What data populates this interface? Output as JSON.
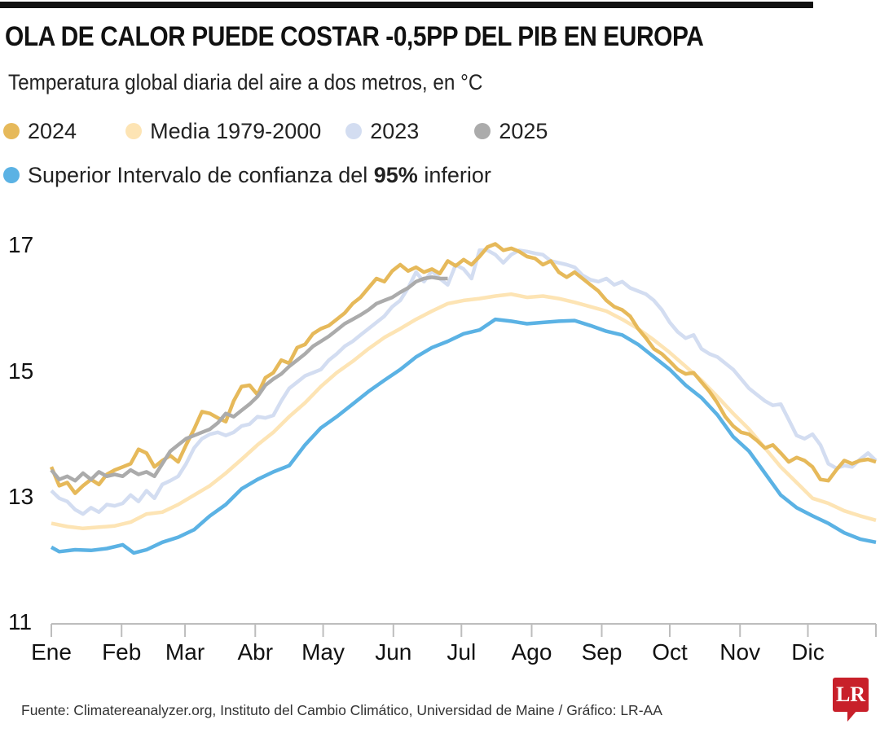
{
  "header": {
    "title": "OLA DE CALOR PUEDE COSTAR -0,5PP DEL PIB EN EUROPA",
    "subtitle": "Temperatura global diaria del aire a dos metros, en °C"
  },
  "legend": [
    {
      "label": "2024",
      "color": "#e6b95a"
    },
    {
      "label": "Media 1979-2000",
      "color": "#fde4b4"
    },
    {
      "label": "2023",
      "color": "#d3ddf1"
    },
    {
      "label": "2025",
      "color": "#ababab"
    }
  ],
  "legend_row2": {
    "prefix": "Superior Intervalo de confianza del ",
    "bold": "95%",
    "suffix": " inferior",
    "color": "#5bb2e4"
  },
  "footer": {
    "source": "Fuente: Climatereanalyzer.org, Instituto del Cambio Climático, Universidad de Maine / Gráfico: LR-AA",
    "logo_text": "LR"
  },
  "chart_data": {
    "type": "line",
    "title": "OLA DE CALOR PUEDE COSTAR -0,5PP DEL PIB EN EUROPA",
    "subtitle": "Temperatura global diaria del aire a dos metros, en °C",
    "xlabel": "",
    "ylabel": "°C",
    "ylim": [
      11,
      17.6
    ],
    "yticks": [
      11,
      13,
      15,
      17
    ],
    "xlim": [
      0,
      52
    ],
    "x_unit": "week of year",
    "xticks": [
      {
        "label": "Ene",
        "week": 0
      },
      {
        "label": "Feb",
        "week": 4.43
      },
      {
        "label": "Mar",
        "week": 8.43
      },
      {
        "label": "Abr",
        "week": 12.86
      },
      {
        "label": "May",
        "week": 17.14
      },
      {
        "label": "Jun",
        "week": 21.57
      },
      {
        "label": "Jul",
        "week": 25.86
      },
      {
        "label": "Ago",
        "week": 30.29
      },
      {
        "label": "Sep",
        "week": 34.71
      },
      {
        "label": "Oct",
        "week": 39.0
      },
      {
        "label": "Nov",
        "week": 43.43
      },
      {
        "label": "Dic",
        "week": 47.71
      }
    ],
    "grid": false,
    "legend_position": "top",
    "series": [
      {
        "name": "Superior Intervalo de confianza del 95% inferior",
        "color": "#5bb2e4",
        "x": [
          0,
          0.5,
          1.5,
          2.5,
          3.5,
          4.5,
          5.2,
          6,
          7,
          8,
          9,
          10,
          11,
          12,
          13,
          14,
          15,
          16,
          17,
          18,
          19,
          20,
          21,
          22,
          23,
          24,
          25,
          26,
          27,
          28,
          29,
          30,
          31,
          32,
          33,
          34,
          35,
          36,
          37,
          38,
          39,
          40,
          41,
          42,
          43,
          44,
          45,
          46,
          47,
          48,
          49,
          50,
          51,
          52
        ],
        "values": [
          12.22,
          12.15,
          12.18,
          12.17,
          12.2,
          12.26,
          12.13,
          12.18,
          12.3,
          12.38,
          12.5,
          12.72,
          12.9,
          13.15,
          13.3,
          13.42,
          13.52,
          13.85,
          14.12,
          14.3,
          14.5,
          14.7,
          14.88,
          15.05,
          15.25,
          15.4,
          15.5,
          15.62,
          15.68,
          15.85,
          15.82,
          15.78,
          15.8,
          15.82,
          15.83,
          15.75,
          15.66,
          15.6,
          15.45,
          15.25,
          15.05,
          14.8,
          14.6,
          14.33,
          13.98,
          13.75,
          13.4,
          13.05,
          12.85,
          12.72,
          12.6,
          12.45,
          12.35,
          12.3
        ]
      },
      {
        "name": "Media 1979-2000",
        "color": "#fde4b4",
        "x": [
          0,
          1,
          2,
          3,
          4,
          5,
          6,
          7,
          8,
          9,
          10,
          11,
          12,
          13,
          14,
          15,
          16,
          17,
          18,
          19,
          20,
          21,
          22,
          23,
          24,
          25,
          26,
          27,
          28,
          29,
          30,
          31,
          32,
          33,
          34,
          35,
          36,
          37,
          38,
          39,
          40,
          41,
          42,
          43,
          44,
          45,
          46,
          47,
          48,
          49,
          50,
          51,
          52
        ],
        "values": [
          12.6,
          12.55,
          12.52,
          12.54,
          12.56,
          12.62,
          12.75,
          12.78,
          12.9,
          13.05,
          13.2,
          13.4,
          13.62,
          13.85,
          14.05,
          14.3,
          14.52,
          14.78,
          15.0,
          15.18,
          15.38,
          15.56,
          15.7,
          15.85,
          15.98,
          16.1,
          16.15,
          16.18,
          16.22,
          16.25,
          16.2,
          16.22,
          16.18,
          16.12,
          16.05,
          15.98,
          15.85,
          15.7,
          15.52,
          15.32,
          15.1,
          14.88,
          14.62,
          14.35,
          14.1,
          13.8,
          13.5,
          13.25,
          13.0,
          12.92,
          12.8,
          12.72,
          12.65
        ]
      },
      {
        "name": "2023",
        "color": "#d3ddf1",
        "x": [
          0,
          0.5,
          1,
          1.5,
          2,
          2.5,
          3,
          3.5,
          4,
          4.5,
          5,
          5.5,
          6,
          6.5,
          7,
          7.5,
          8,
          8.5,
          9,
          9.5,
          10,
          10.5,
          11,
          11.5,
          12,
          12.5,
          13,
          13.5,
          14,
          14.5,
          15,
          15.5,
          16,
          16.5,
          17,
          17.5,
          18,
          18.5,
          19,
          19.5,
          20,
          20.5,
          21,
          21.5,
          22,
          22.5,
          23,
          23.5,
          24,
          24.5,
          25,
          25.5,
          26,
          26.5,
          27,
          27.5,
          28,
          28.5,
          29,
          29.5,
          30,
          30.5,
          31,
          31.5,
          32,
          32.5,
          33,
          33.5,
          34,
          34.5,
          35,
          35.5,
          36,
          36.5,
          37,
          37.5,
          38,
          38.5,
          39,
          39.5,
          40,
          40.5,
          41,
          41.5,
          42,
          42.5,
          43,
          43.5,
          44,
          44.5,
          45,
          45.5,
          46,
          46.5,
          47,
          47.5,
          48,
          48.5,
          49,
          49.5,
          50,
          50.5,
          51,
          51.5,
          52
        ],
        "values": [
          13.12,
          13.0,
          12.95,
          12.82,
          12.75,
          12.85,
          12.78,
          12.9,
          12.88,
          12.92,
          13.05,
          12.95,
          13.12,
          13.0,
          13.22,
          13.28,
          13.35,
          13.55,
          13.8,
          13.95,
          14.02,
          14.05,
          14.0,
          14.05,
          14.15,
          14.18,
          14.3,
          14.28,
          14.32,
          14.55,
          14.75,
          14.85,
          14.95,
          15.0,
          15.05,
          15.2,
          15.3,
          15.42,
          15.5,
          15.6,
          15.7,
          15.8,
          15.9,
          16.05,
          16.15,
          16.35,
          16.6,
          16.45,
          16.62,
          16.5,
          16.4,
          16.72,
          16.65,
          16.5,
          16.95,
          16.95,
          16.88,
          16.75,
          16.88,
          16.95,
          16.93,
          16.9,
          16.88,
          16.78,
          16.75,
          16.72,
          16.68,
          16.55,
          16.48,
          16.45,
          16.5,
          16.4,
          16.45,
          16.35,
          16.3,
          16.25,
          16.15,
          16.0,
          15.8,
          15.65,
          15.55,
          15.6,
          15.38,
          15.3,
          15.25,
          15.15,
          15.05,
          14.9,
          14.75,
          14.65,
          14.55,
          14.48,
          14.5,
          14.25,
          14.0,
          13.95,
          14.02,
          13.85,
          13.55,
          13.48,
          13.52,
          13.5,
          13.62,
          13.72,
          13.6
        ]
      },
      {
        "name": "2024",
        "color": "#e6b95a",
        "x": [
          0,
          0.5,
          1,
          1.5,
          2,
          2.5,
          3,
          3.5,
          4,
          4.5,
          5,
          5.5,
          6,
          6.5,
          7,
          7.5,
          8,
          8.5,
          9,
          9.5,
          10,
          10.5,
          11,
          11.5,
          12,
          12.5,
          13,
          13.5,
          14,
          14.5,
          15,
          15.5,
          16,
          16.5,
          17,
          17.5,
          18,
          18.5,
          19,
          19.5,
          20,
          20.5,
          21,
          21.5,
          22,
          22.5,
          23,
          23.5,
          24,
          24.5,
          25,
          25.5,
          26,
          26.5,
          27,
          27.5,
          28,
          28.5,
          29,
          29.5,
          30,
          30.5,
          31,
          31.5,
          32,
          32.5,
          33,
          33.5,
          34,
          34.5,
          35,
          35.5,
          36,
          36.5,
          37,
          37.5,
          38,
          38.5,
          39,
          39.5,
          40,
          40.5,
          41,
          41.5,
          42,
          42.5,
          43,
          43.5,
          44,
          44.5,
          45,
          45.5,
          46,
          46.5,
          47,
          47.5,
          48,
          48.5,
          49,
          49.5,
          50,
          50.5,
          51,
          51.5,
          52
        ],
        "values": [
          13.5,
          13.2,
          13.25,
          13.08,
          13.2,
          13.3,
          13.22,
          13.38,
          13.45,
          13.5,
          13.55,
          13.78,
          13.72,
          13.5,
          13.6,
          13.68,
          13.58,
          13.85,
          14.1,
          14.38,
          14.35,
          14.28,
          14.22,
          14.55,
          14.78,
          14.8,
          14.65,
          14.92,
          15.0,
          15.2,
          15.15,
          15.4,
          15.45,
          15.62,
          15.7,
          15.75,
          15.85,
          15.95,
          16.1,
          16.2,
          16.35,
          16.5,
          16.45,
          16.62,
          16.72,
          16.62,
          16.68,
          16.6,
          16.65,
          16.58,
          16.78,
          16.7,
          16.8,
          16.72,
          16.85,
          17.0,
          17.05,
          16.95,
          16.98,
          16.93,
          16.85,
          16.82,
          16.72,
          16.78,
          16.6,
          16.52,
          16.6,
          16.5,
          16.4,
          16.3,
          16.15,
          16.05,
          16.0,
          15.9,
          15.7,
          15.55,
          15.38,
          15.3,
          15.18,
          15.05,
          14.98,
          15.0,
          14.85,
          14.7,
          14.52,
          14.3,
          14.15,
          14.05,
          14.02,
          13.92,
          13.8,
          13.85,
          13.72,
          13.58,
          13.65,
          13.6,
          13.5,
          13.3,
          13.28,
          13.45,
          13.6,
          13.55,
          13.6,
          13.62,
          13.58
        ]
      },
      {
        "name": "2025",
        "color": "#ababab",
        "x": [
          0,
          0.5,
          1,
          1.5,
          2,
          2.5,
          3,
          3.5,
          4,
          4.5,
          5,
          5.5,
          6,
          6.5,
          7,
          7.5,
          8,
          8.5,
          9,
          9.5,
          10,
          10.5,
          11,
          11.5,
          12,
          12.5,
          13,
          13.5,
          14,
          14.5,
          15,
          15.5,
          16,
          16.5,
          17,
          17.5,
          18,
          18.5,
          19,
          19.5,
          20,
          20.5,
          21,
          21.5,
          22,
          22.5,
          23,
          23.5,
          24,
          24.5,
          25
        ],
        "values": [
          13.45,
          13.3,
          13.35,
          13.28,
          13.4,
          13.3,
          13.42,
          13.35,
          13.38,
          13.35,
          13.45,
          13.38,
          13.42,
          13.35,
          13.55,
          13.75,
          13.85,
          13.95,
          14.0,
          14.05,
          14.1,
          14.2,
          14.35,
          14.3,
          14.4,
          14.5,
          14.62,
          14.8,
          14.9,
          14.98,
          15.1,
          15.2,
          15.3,
          15.42,
          15.5,
          15.58,
          15.68,
          15.78,
          15.85,
          15.92,
          16.0,
          16.1,
          16.15,
          16.2,
          16.28,
          16.35,
          16.45,
          16.5,
          16.52,
          16.5,
          16.5
        ]
      }
    ]
  }
}
